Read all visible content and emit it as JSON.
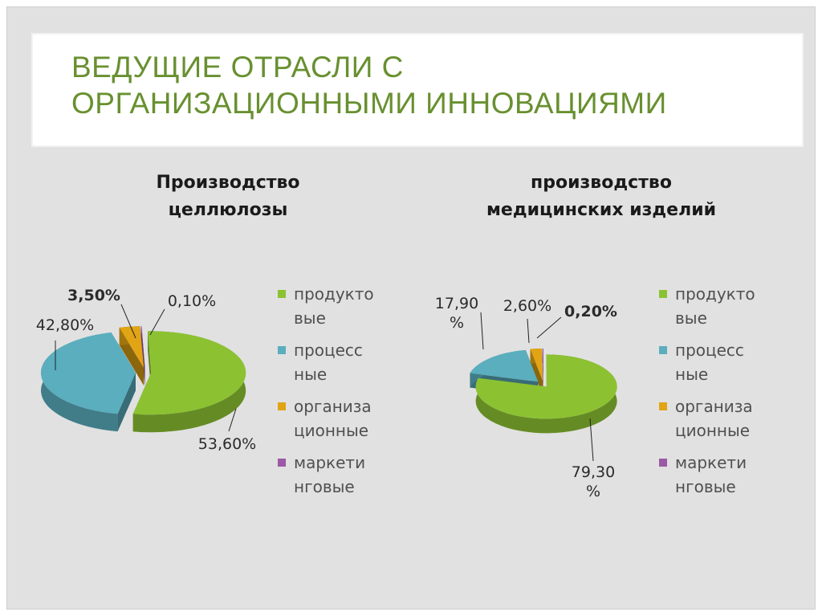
{
  "slide": {
    "title_lines": [
      "ВЕДУЩИЕ ОТРАСЛИ С",
      "ОРГАНИЗАЦИОННЫМИ ИННОВАЦИЯМИ"
    ]
  },
  "colors": {
    "green": "#8cc232",
    "blue": "#5aaebe",
    "orange": "#e0a415",
    "purple": "#9b59a6"
  },
  "legend": [
    {
      "lines": [
        "продукто",
        "вые"
      ],
      "color": "#8cc232"
    },
    {
      "lines": [
        "процесс",
        "ные"
      ],
      "color": "#5aaebe"
    },
    {
      "lines": [
        "организа",
        "ционные"
      ],
      "color": "#e0a415"
    },
    {
      "lines": [
        "маркети",
        "нговые"
      ],
      "color": "#9b59a6"
    }
  ],
  "chart_data": [
    {
      "type": "pie",
      "title_lines": [
        "Производство",
        "целлюлозы"
      ],
      "categories": [
        "продуктовые",
        "процессные",
        "организационные",
        "маркетинговые"
      ],
      "values": [
        53.6,
        42.8,
        3.5,
        0.1
      ],
      "labels": [
        "53,60%",
        "42,80%",
        "3,50%",
        "0,10%"
      ],
      "bold_labels": [
        false,
        false,
        true,
        false
      ],
      "legend_position": "right"
    },
    {
      "type": "pie",
      "title_lines": [
        "производство",
        "медицинских изделий"
      ],
      "categories": [
        "продуктовые",
        "процессные",
        "организационные",
        "маркетинговые"
      ],
      "values": [
        79.3,
        17.9,
        2.6,
        0.2
      ],
      "labels": [
        "79,30 %",
        "17,90 %",
        "2,60%",
        "0,20%"
      ],
      "bold_labels": [
        false,
        false,
        false,
        true
      ],
      "legend_position": "right"
    }
  ]
}
